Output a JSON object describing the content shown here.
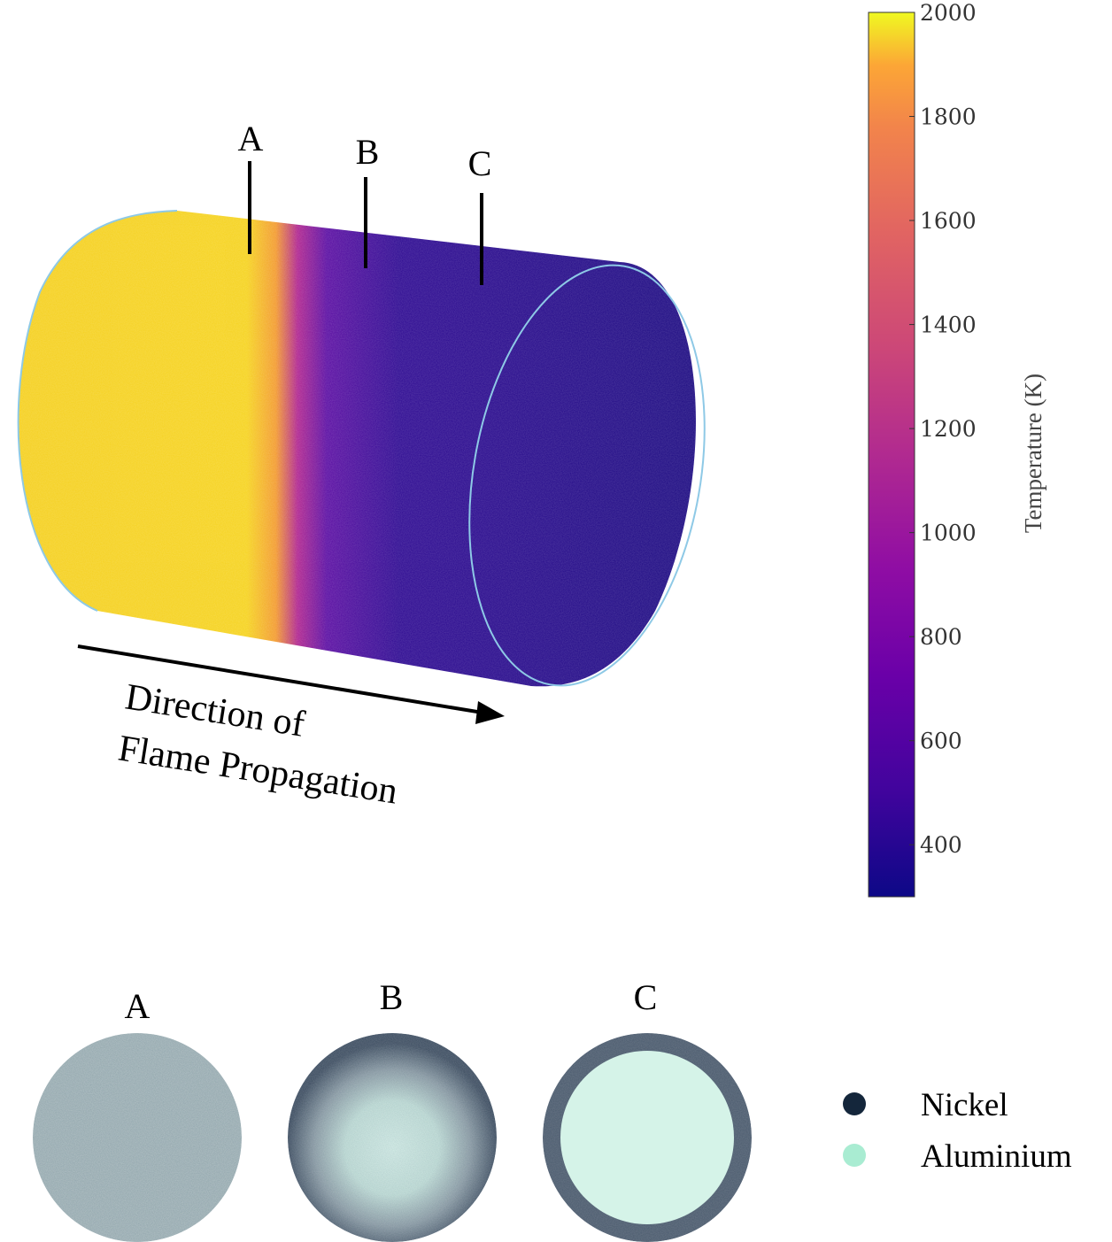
{
  "main_view": {
    "section_labels": [
      "A",
      "B",
      "C"
    ],
    "arrow_caption_line1": "Direction of",
    "arrow_caption_line2": "Flame Propagation"
  },
  "colorbar": {
    "label": "Temperature (K)",
    "ticks": [
      "2000",
      "1800",
      "1600",
      "1400",
      "1200",
      "1000",
      "800",
      "600",
      "400"
    ],
    "range": [
      300,
      2000
    ],
    "colormap": "plasma"
  },
  "cross_sections": [
    {
      "label": "A",
      "nickel_ring_fraction": 0.0,
      "aluminium_core_fraction": 0.0
    },
    {
      "label": "B",
      "nickel_ring_fraction": 0.35,
      "aluminium_core_fraction": 0.45
    },
    {
      "label": "C",
      "nickel_ring_fraction": 0.12,
      "aluminium_core_fraction": 0.88
    }
  ],
  "legend": {
    "items": [
      {
        "label": "Nickel",
        "color": "#14263b"
      },
      {
        "label": "Aluminium",
        "color": "#a9ecd2"
      }
    ]
  },
  "colors": {
    "hot": "#f7d320",
    "cold": "#1b0c80",
    "outline": "#8ec9e6"
  }
}
